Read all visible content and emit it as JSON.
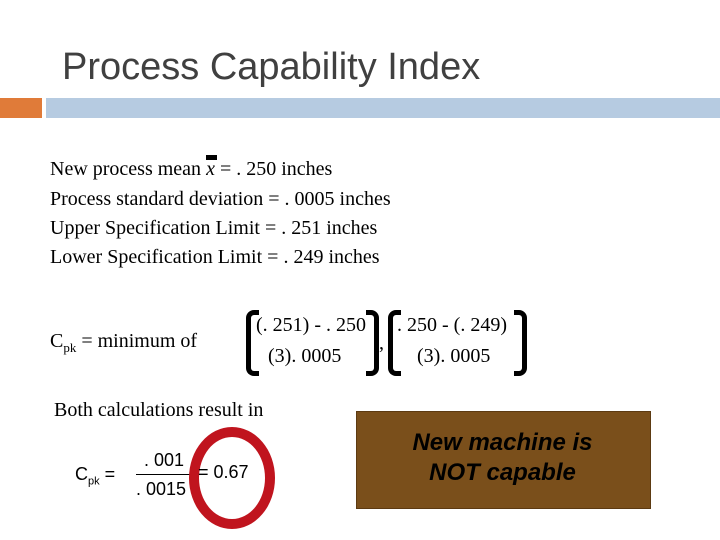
{
  "title": "Process Capability Index",
  "info": {
    "mean_prefix": "New process mean ",
    "mean_symbol": "x",
    "mean_suffix": " = . 250 inches",
    "std_dev": "Process standard deviation = . 0005 inches",
    "usl": "Upper Specification Limit = . 251 inches",
    "lsl": "Lower Specification Limit = . 249 inches"
  },
  "formula": {
    "label": "C",
    "label_sub": "pk",
    "label_rest": " = minimum of",
    "term1_numerator": "(. 251) - . 250",
    "term1_denominator": "(3). 0005",
    "separator": ",",
    "term2_numerator": ". 250 - (. 249)",
    "term2_denominator": "(3). 0005"
  },
  "conclusion": "Both calculations result in",
  "calculation": {
    "label": "C",
    "label_sub": "pk",
    "equals": "=",
    "numerator": ". 001",
    "denominator": ". 0015",
    "result": "= 0.67"
  },
  "verdict": "New machine is\nNOT capable",
  "colors": {
    "accent_orange": "#e07b39",
    "bar_blue": "#b6cbe1",
    "ring_red": "#c0141e",
    "verdict_brown": "#7a4f1b"
  }
}
